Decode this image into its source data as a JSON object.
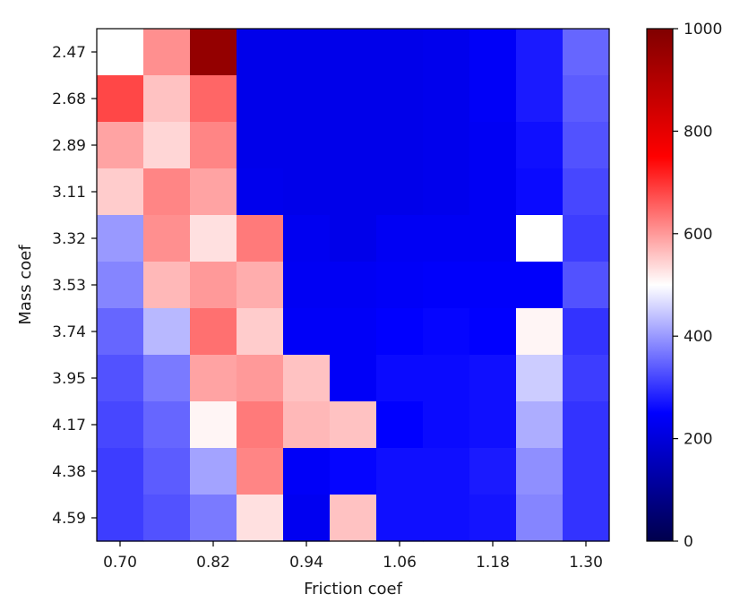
{
  "chart_data": {
    "type": "heatmap",
    "title": "",
    "xlabel": "Friction coef",
    "ylabel": "Mass coef",
    "x_ticks": [
      "0.70",
      "0.82",
      "0.94",
      "1.06",
      "1.18",
      "1.30"
    ],
    "y_ticks": [
      "2.47",
      "2.68",
      "2.89",
      "3.11",
      "3.32",
      "3.53",
      "3.74",
      "3.95",
      "4.17",
      "4.38",
      "4.59"
    ],
    "rows": 11,
    "cols": 11,
    "colormap": "seismic",
    "colorbar_range": [
      0,
      1000
    ],
    "colorbar_ticks": [
      "0",
      "200",
      "400",
      "600",
      "800",
      "1000"
    ],
    "values": [
      [
        500,
        610,
        960,
        220,
        220,
        220,
        220,
        225,
        240,
        275,
        350
      ],
      [
        680,
        560,
        650,
        220,
        220,
        220,
        220,
        225,
        240,
        275,
        340
      ],
      [
        590,
        540,
        620,
        220,
        220,
        220,
        220,
        225,
        235,
        265,
        330
      ],
      [
        550,
        620,
        590,
        225,
        220,
        220,
        220,
        225,
        235,
        260,
        320
      ],
      [
        400,
        610,
        530,
        630,
        230,
        220,
        235,
        235,
        235,
        500,
        310
      ],
      [
        380,
        570,
        600,
        580,
        235,
        235,
        240,
        245,
        245,
        245,
        330
      ],
      [
        350,
        430,
        640,
        550,
        240,
        240,
        250,
        255,
        250,
        510,
        300
      ],
      [
        330,
        370,
        590,
        600,
        560,
        240,
        260,
        260,
        265,
        450,
        310
      ],
      [
        320,
        350,
        510,
        630,
        570,
        560,
        250,
        260,
        265,
        420,
        300
      ],
      [
        310,
        340,
        410,
        620,
        240,
        255,
        265,
        265,
        275,
        390,
        300
      ],
      [
        310,
        330,
        370,
        530,
        230,
        560,
        265,
        265,
        270,
        380,
        300
      ]
    ]
  }
}
